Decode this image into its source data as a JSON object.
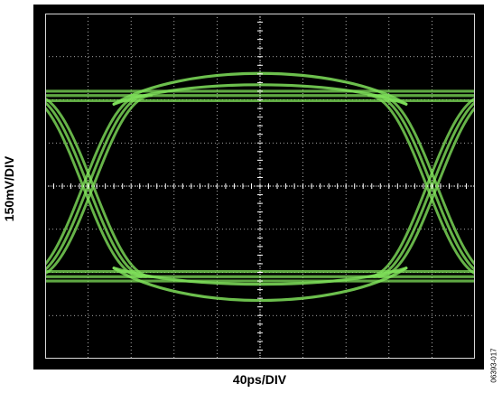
{
  "chart_data": {
    "type": "eye-diagram",
    "xlabel": "40ps/DIV",
    "ylabel": "150mV/DIV",
    "grid": true,
    "x_divisions": 10,
    "y_divisions": 8,
    "trace_color": "#7fe05a",
    "background_color": "#000000",
    "grid_color": "#ffffff",
    "crossings_div": [
      1,
      9
    ],
    "high_level_div": 6.1,
    "low_level_div": 1.9,
    "eye_open_high_div": [
      6.5,
      6.85
    ],
    "eye_open_low_div": [
      1.1,
      1.6
    ]
  },
  "figure_id": "06393-017"
}
